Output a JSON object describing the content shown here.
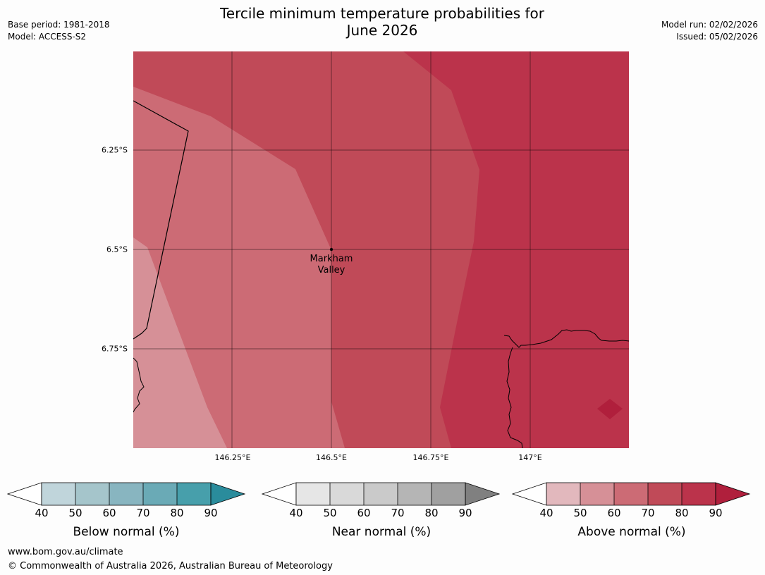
{
  "title": {
    "line1": "Tercile minimum temperature probabilities for",
    "line2": "June 2026"
  },
  "meta": {
    "base_period": "Base period: 1981-2018",
    "model": "Model: ACCESS-S2",
    "model_run": "Model run: 02/02/2026",
    "issued": "Issued: 05/02/2026"
  },
  "map": {
    "lat_labels": [
      "6.25°S",
      "6.5°S",
      "6.75°S"
    ],
    "lon_labels": [
      "146.25°E",
      "146.5°E",
      "146.75°E",
      "147°E"
    ],
    "city": {
      "name_line1": "Markham",
      "name_line2": "Valley"
    },
    "colors": {
      "above_60_70": "#cc6b75",
      "above_70_80": "#c04a58",
      "above_80_90": "#bb334b",
      "above_50_60": "#d69097",
      "above_90_plus": "#b01f3c"
    }
  },
  "legends": [
    {
      "title": "Below normal (%)",
      "ticks": [
        "40",
        "50",
        "60",
        "70",
        "80",
        "90"
      ],
      "colors": [
        "#c0d5db",
        "#a5c5cb",
        "#88b5c0",
        "#6aaab6",
        "#479fab"
      ],
      "extend_color": "#2a8c9c"
    },
    {
      "title": "Near normal (%)",
      "ticks": [
        "40",
        "50",
        "60",
        "70",
        "80",
        "90"
      ],
      "colors": [
        "#e6e6e6",
        "#d9d9d9",
        "#cacaca",
        "#b5b5b5",
        "#a0a0a0"
      ],
      "extend_color": "#808080"
    },
    {
      "title": "Above normal (%)",
      "ticks": [
        "40",
        "50",
        "60",
        "70",
        "80",
        "90"
      ],
      "colors": [
        "#e2b8bd",
        "#d69097",
        "#cc6b75",
        "#c04a58",
        "#bb334b"
      ],
      "extend_color": "#b01f3c"
    }
  ],
  "footer": {
    "url": "www.bom.gov.au/climate",
    "copyright": "© Commonwealth of Australia 2026, Australian Bureau of Meteorology"
  }
}
